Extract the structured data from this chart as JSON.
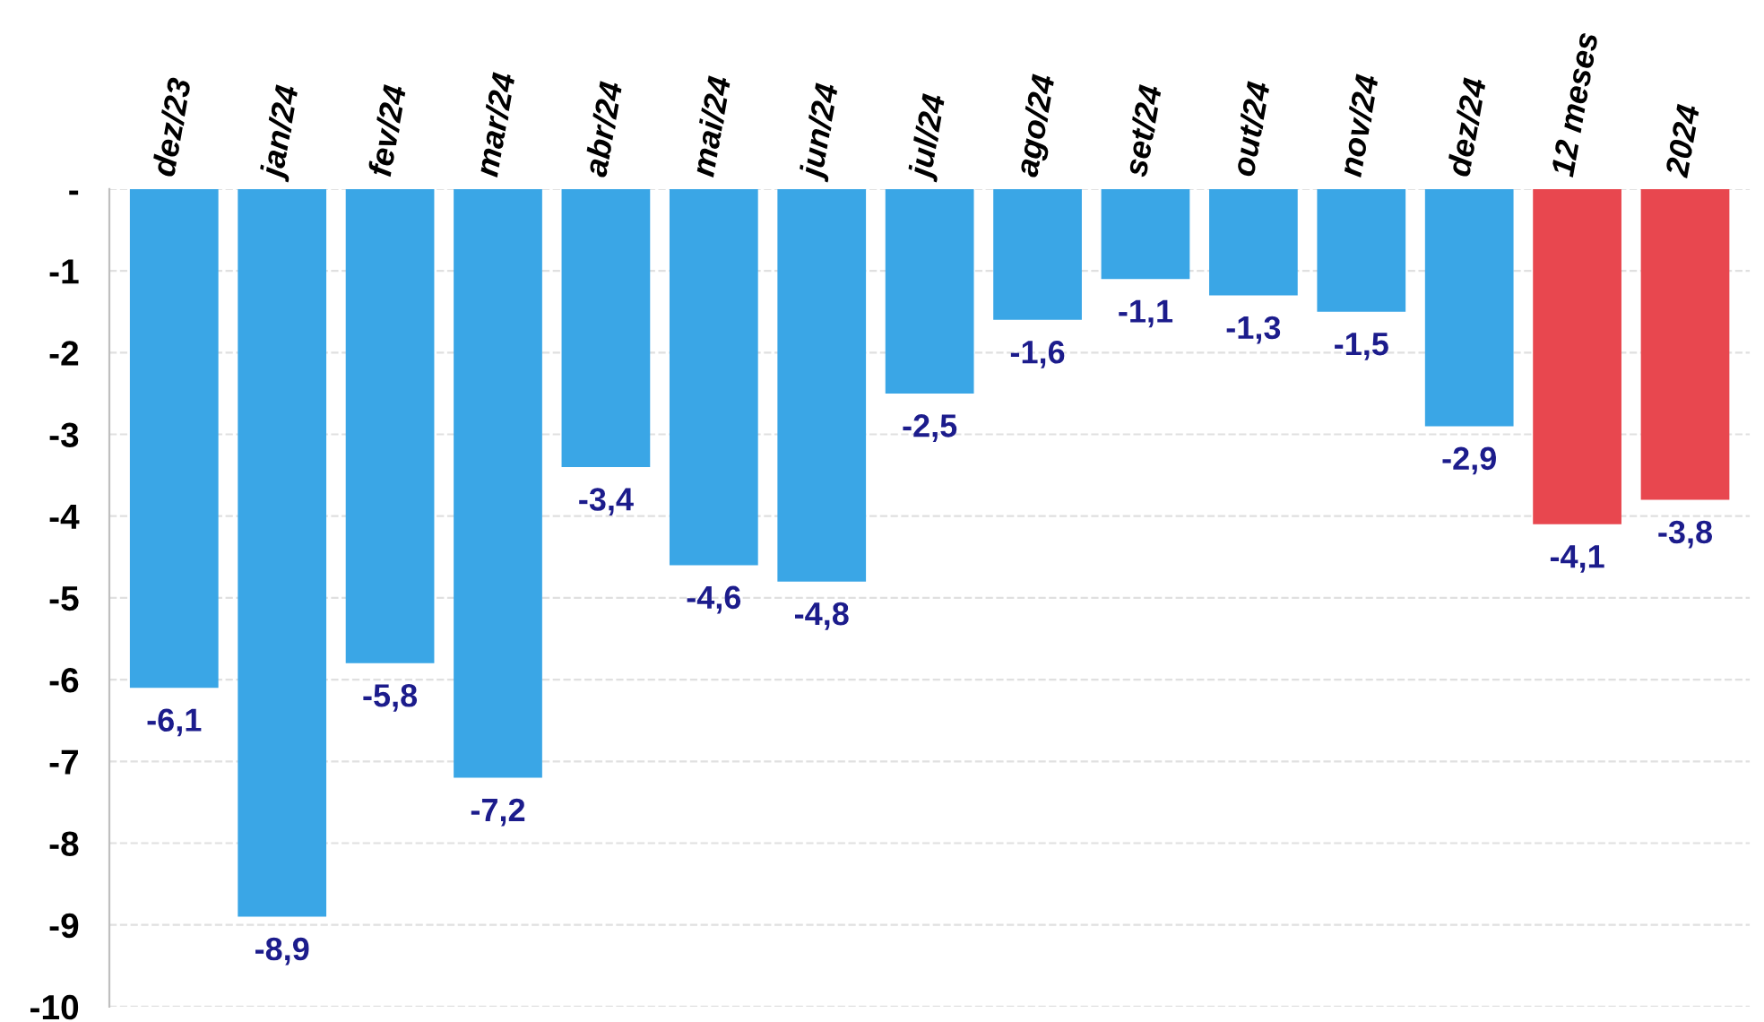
{
  "chart_data": {
    "type": "bar",
    "categories": [
      "dez/23",
      "jan/24",
      "fev/24",
      "mar/24",
      "abr/24",
      "mai/24",
      "jun/24",
      "jul/24",
      "ago/24",
      "set/24",
      "out/24",
      "nov/24",
      "dez/24",
      "12 meses",
      "2024"
    ],
    "values": [
      -6.1,
      -8.9,
      -5.8,
      -7.2,
      -3.4,
      -4.6,
      -4.8,
      -2.5,
      -1.6,
      -1.1,
      -1.3,
      -1.5,
      -2.9,
      -4.1,
      -3.8
    ],
    "colors": [
      "#3aa6e6",
      "#3aa6e6",
      "#3aa6e6",
      "#3aa6e6",
      "#3aa6e6",
      "#3aa6e6",
      "#3aa6e6",
      "#3aa6e6",
      "#3aa6e6",
      "#3aa6e6",
      "#3aa6e6",
      "#3aa6e6",
      "#3aa6e6",
      "#e8474f",
      "#e8474f"
    ],
    "value_labels": [
      "-6,1",
      "-8,9",
      "-5,8",
      "-7,2",
      "-3,4",
      "-4,6",
      "-4,8",
      "-2,5",
      "-1,6",
      "-1,1",
      "-1,3",
      "-1,5",
      "-2,9",
      "-4,1",
      "-3,8"
    ],
    "ylim": [
      -10,
      0
    ],
    "yticks": [
      {
        "value": 0,
        "label": "-"
      },
      -1,
      -2,
      -3,
      -4,
      -5,
      -6,
      -7,
      -8,
      -9,
      -10
    ],
    "grid": "y"
  }
}
